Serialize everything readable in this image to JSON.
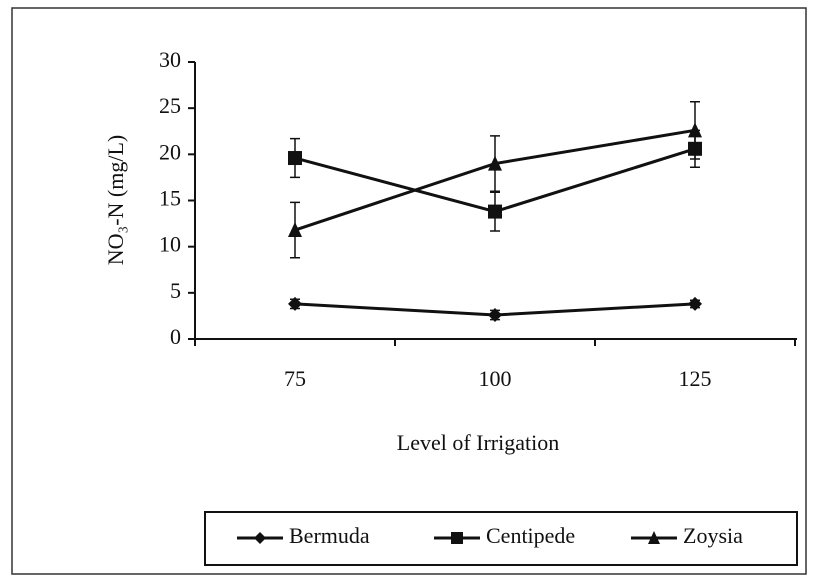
{
  "chart_data": {
    "type": "line",
    "x_label": "Level of Irrigation",
    "y_label": "NO₃-N (mg/L)",
    "categories": [
      "75",
      "100",
      "125"
    ],
    "series": [
      {
        "name": "Bermuda",
        "color": "#111111",
        "marker": "diamond",
        "values": [
          3.8,
          2.6,
          3.8
        ],
        "errors": [
          0.5,
          0.5,
          0.4
        ]
      },
      {
        "name": "Centipede",
        "color": "#111111",
        "marker": "square",
        "values": [
          19.6,
          13.8,
          20.6
        ],
        "errors": [
          2.1,
          2.1,
          2.0
        ]
      },
      {
        "name": "Zoysia",
        "color": "#111111",
        "marker": "triangle",
        "values": [
          11.8,
          19.0,
          22.6
        ],
        "errors": [
          3.0,
          3.0,
          3.1
        ]
      }
    ],
    "ylim": [
      0,
      30
    ],
    "yticks": [
      0,
      5,
      10,
      15,
      20,
      25,
      30
    ],
    "legend": "bottom",
    "grid": false
  }
}
